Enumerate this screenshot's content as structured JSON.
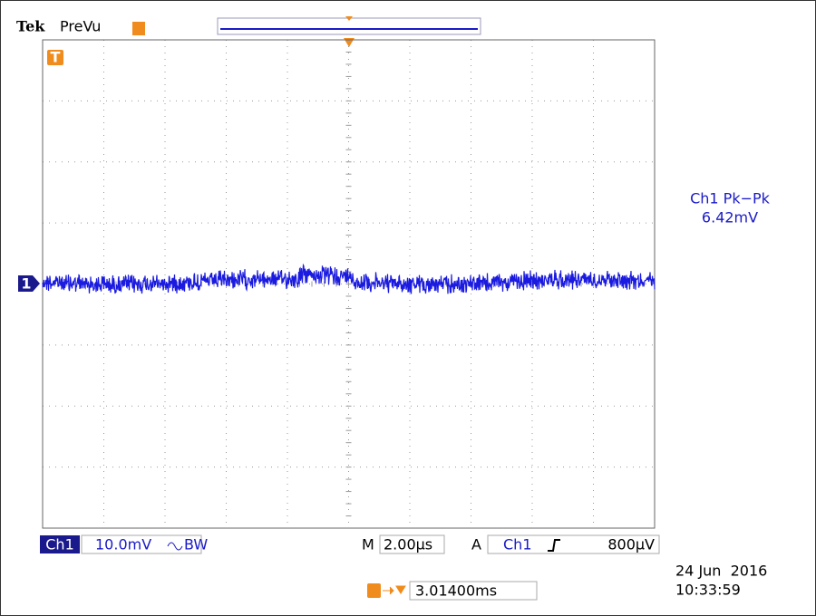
{
  "header": {
    "brand": "Tek",
    "mode": "PreVu"
  },
  "markers": {
    "trigger_icon": "T",
    "channel_marker": "1"
  },
  "measurement": {
    "label": "Ch1 Pk−Pk",
    "value": "6.42mV"
  },
  "status": {
    "channel": "Ch1",
    "scale": "10.0mV",
    "bandwidth": "BW",
    "timebase_prefix": "M",
    "timebase": "2.00µs",
    "trigger_prefix": "A",
    "trigger_source": "Ch1",
    "trigger_level": "800µV",
    "trigger_offset": "3.01400ms"
  },
  "timestamp": {
    "date": "24 Jun  2016",
    "time": "10:33:59"
  }
}
